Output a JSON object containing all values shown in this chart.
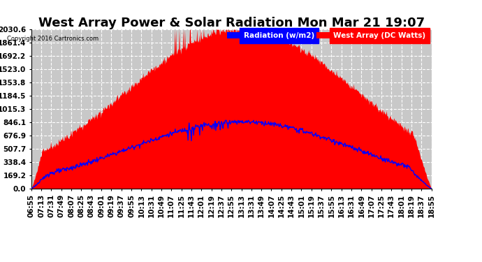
{
  "title": "West Array Power & Solar Radiation Mon Mar 21 19:07",
  "copyright": "Copyright 2016 Cartronics.com",
  "legend_labels": [
    "Radiation (w/m2)",
    "West Array (DC Watts)"
  ],
  "legend_colors": [
    "blue",
    "red"
  ],
  "ymax": 2030.6,
  "yticks": [
    0.0,
    169.2,
    338.4,
    507.7,
    676.9,
    846.1,
    1015.3,
    1184.5,
    1353.8,
    1523.0,
    1692.2,
    1861.4,
    2030.6
  ],
  "bg_color": "#ffffff",
  "plot_bg_color": "#c8c8c8",
  "grid_color": "#ffffff",
  "radiation_color": "blue",
  "power_color": "red",
  "title_fontsize": 13,
  "axis_fontsize": 7.5,
  "tick_labels": [
    "06:55",
    "07:13",
    "07:31",
    "07:49",
    "08:07",
    "08:25",
    "08:43",
    "09:01",
    "09:19",
    "09:37",
    "09:55",
    "10:13",
    "10:31",
    "10:49",
    "11:07",
    "11:25",
    "11:43",
    "12:01",
    "12:19",
    "12:37",
    "12:55",
    "13:13",
    "13:31",
    "13:49",
    "14:07",
    "14:25",
    "14:43",
    "15:01",
    "15:19",
    "15:37",
    "15:55",
    "16:13",
    "16:31",
    "16:49",
    "17:07",
    "17:25",
    "17:43",
    "18:01",
    "18:19",
    "18:37",
    "18:55"
  ]
}
